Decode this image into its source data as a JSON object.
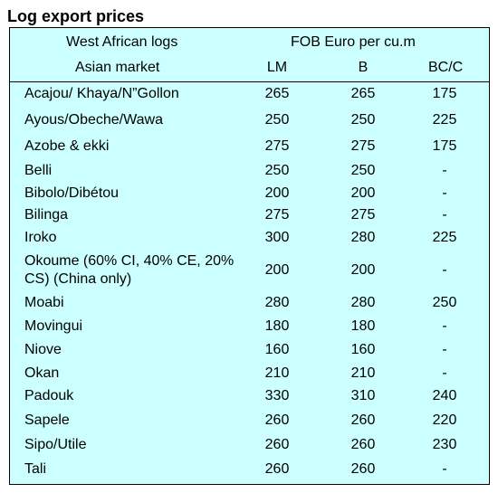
{
  "title": "Log export prices",
  "header": {
    "left_line1": "West African logs",
    "left_line2": "Asian market",
    "right_line1": "FOB Euro per cu.m",
    "col_lm": "LM",
    "col_b": "B",
    "col_bcc": "BC/C"
  },
  "rows": [
    {
      "name": "Acajou/ Khaya/N”Gollon",
      "lm": "265",
      "b": "265",
      "bcc": "175"
    },
    {
      "name": "Ayous/Obeche/Wawa",
      "lm": "250",
      "b": "250",
      "bcc": "225"
    },
    {
      "name": "Azobe & ekki",
      "lm": "275",
      "b": "275",
      "bcc": "175"
    },
    {
      "name": "Belli",
      "lm": "250",
      "b": "250",
      "bcc": "-"
    },
    {
      "name": "Bibolo/Dibétou",
      "lm": "200",
      "b": "200",
      "bcc": "-"
    },
    {
      "name": "Bilinga",
      "lm": "275",
      "b": "275",
      "bcc": "-"
    },
    {
      "name": "Iroko",
      "lm": "300",
      "b": "280",
      "bcc": "225"
    },
    {
      "name": "Okoume (60% CI, 40% CE, 20% CS) (China only)",
      "lm": "200",
      "b": "200",
      "bcc": "-"
    },
    {
      "name": "Moabi",
      "lm": "280",
      "b": "280",
      "bcc": "250"
    },
    {
      "name": "Movingui",
      "lm": "180",
      "b": "180",
      "bcc": "-"
    },
    {
      "name": "Niove",
      "lm": "160",
      "b": "160",
      "bcc": "-"
    },
    {
      "name": "Okan",
      "lm": "210",
      "b": "210",
      "bcc": "-"
    },
    {
      "name": "Padouk",
      "lm": "330",
      "b": "310",
      "bcc": "240"
    },
    {
      "name": "Sapele",
      "lm": "260",
      "b": "260",
      "bcc": "220"
    },
    {
      "name": "Sipo/Utile",
      "lm": "260",
      "b": "260",
      "bcc": "230"
    },
    {
      "name": "Tali",
      "lm": "260",
      "b": "260",
      "bcc": "-"
    }
  ]
}
